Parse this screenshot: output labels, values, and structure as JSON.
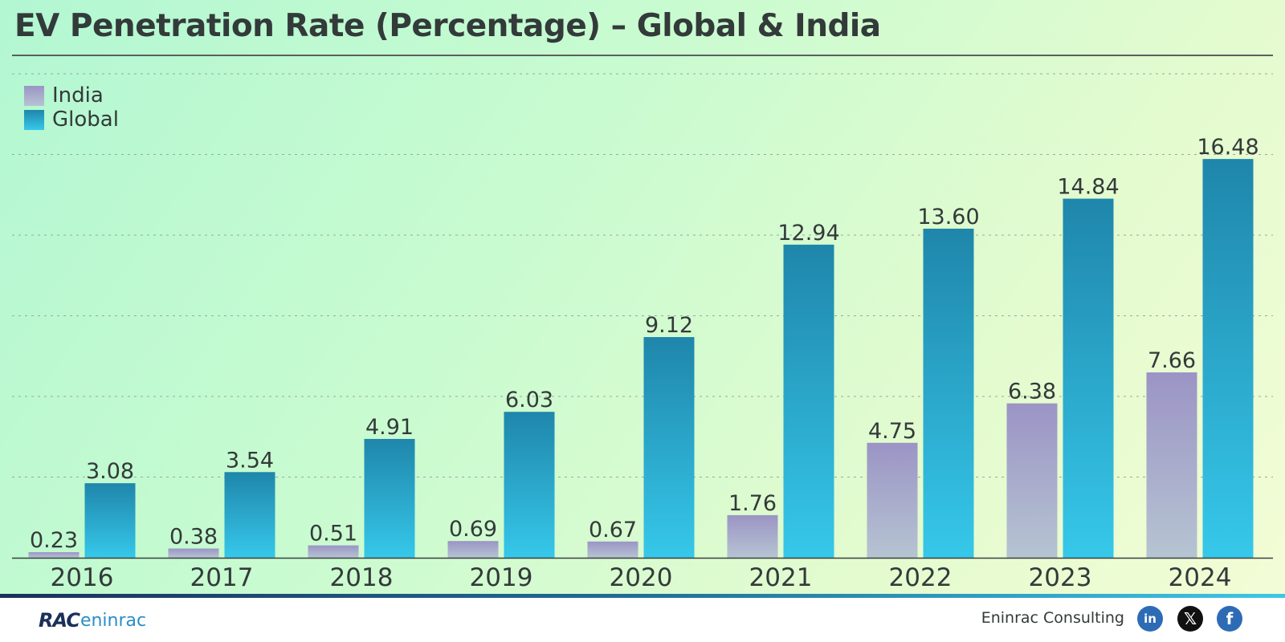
{
  "title": "EV Penetration Rate (Percentage) – Global & India",
  "legend": [
    {
      "name": "India",
      "color": "#a79fc8"
    },
    {
      "name": "Global",
      "color": "#2b9fcb"
    }
  ],
  "chart_data": {
    "type": "bar",
    "title": "EV Penetration Rate (Percentage) – Global & India",
    "xlabel": "",
    "ylabel": "",
    "categories": [
      "2016",
      "2017",
      "2018",
      "2019",
      "2020",
      "2021",
      "2022",
      "2023",
      "2024"
    ],
    "series": [
      {
        "name": "India",
        "values": [
          0.23,
          0.38,
          0.51,
          0.69,
          0.67,
          1.76,
          4.75,
          6.38,
          7.66
        ],
        "labels": [
          "0.23",
          "0.38",
          "0.51",
          "0.69",
          "0.67",
          "1.76",
          "4.75",
          "6.38",
          "7.66"
        ],
        "colors": [
          "#9b94c5",
          "#b6c4d2"
        ]
      },
      {
        "name": "Global",
        "values": [
          3.08,
          3.54,
          4.91,
          6.03,
          9.12,
          12.94,
          13.6,
          14.84,
          16.48
        ],
        "labels": [
          "3.08",
          "3.54",
          "4.91",
          "6.03",
          "9.12",
          "12.94",
          "13.60",
          "14.84",
          "16.48"
        ],
        "colors": [
          "#1f86ab",
          "#36c8ea"
        ]
      }
    ],
    "ylim": [
      0,
      20
    ],
    "grid": true,
    "legend_position": "top-left"
  },
  "footer": {
    "logo_mark": "RAC",
    "logo_word": "eninrac",
    "company": "Eninrac Consulting",
    "social": [
      {
        "name": "linkedin-icon",
        "glyph": "in"
      },
      {
        "name": "x-icon",
        "glyph": "𝕏"
      },
      {
        "name": "facebook-icon",
        "glyph": "f"
      }
    ]
  }
}
